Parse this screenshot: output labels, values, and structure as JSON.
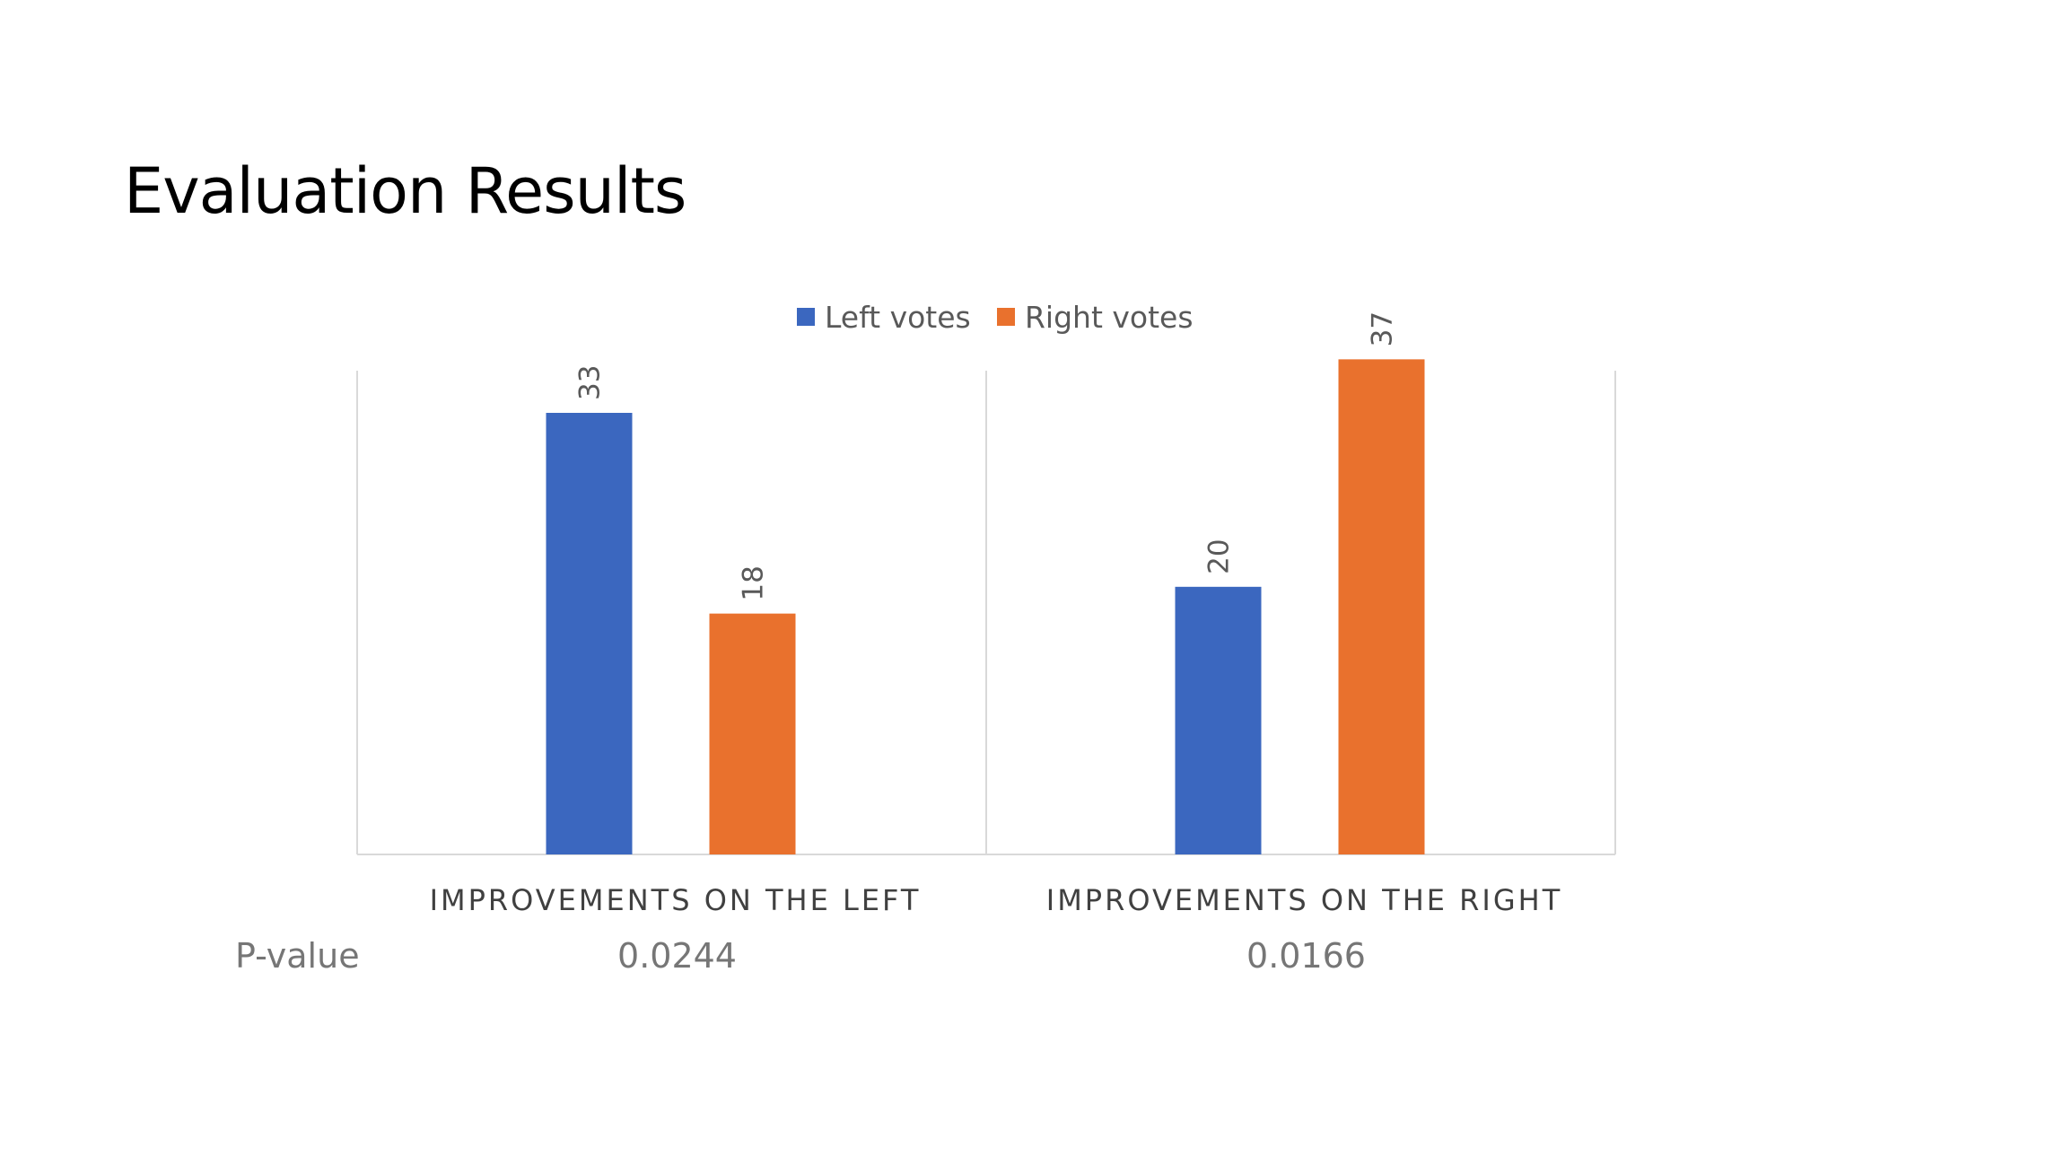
{
  "slide": {
    "title": "Evaluation Results"
  },
  "colors": {
    "left_votes": "#3b67bf",
    "right_votes": "#e9712d",
    "gridline": "#d9d9d9"
  },
  "pvalue_row": {
    "label": "P-value",
    "values": [
      "0.0244",
      "0.0166"
    ]
  },
  "chart_data": {
    "type": "bar",
    "title": "",
    "xlabel": "",
    "ylabel": "",
    "categories": [
      "IMPROVEMENTS ON THE LEFT",
      "IMPROVEMENTS ON THE RIGHT"
    ],
    "series": [
      {
        "name": "Left votes",
        "values": [
          33,
          20
        ]
      },
      {
        "name": "Right votes",
        "values": [
          18,
          37
        ]
      }
    ],
    "ylim": [
      0,
      40
    ],
    "legend": "top-center",
    "grid": false,
    "data_labels": true
  }
}
